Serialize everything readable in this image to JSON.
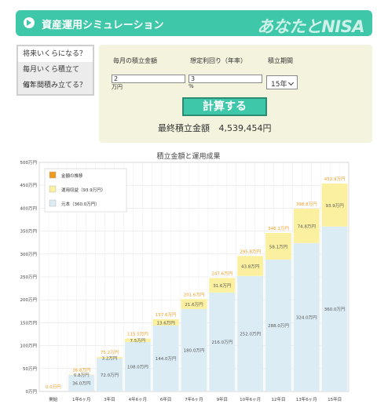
{
  "header": {
    "title": "資産運用シミュレーション",
    "brand": "あなたとNISA"
  },
  "tabs": [
    {
      "label": "将来いくらになる？"
    },
    {
      "label": "毎月いくら積立てる？"
    },
    {
      "label": "何年間積み立てる？"
    }
  ],
  "form": {
    "monthly_label": "毎月の積立金額",
    "rate_label": "想定利回り（年率）",
    "period_label": "積立期間",
    "monthly_value": "2",
    "monthly_unit": "万円",
    "rate_value": "3",
    "rate_unit": "%",
    "period_value": "15年",
    "calc_button": "計算する",
    "result_label": "最終積立金額",
    "result_value": "4,539,454円"
  },
  "chart_data": {
    "type": "bar",
    "title": "積立金額と運用成果",
    "categories": [
      "開始",
      "1年6ヶ月",
      "3年目",
      "4年6ヶ月",
      "6年目",
      "7年6ヶ月",
      "9年目",
      "10年6ヶ月",
      "12年目",
      "13年6ヶ月",
      "15年目"
    ],
    "ylim": [
      0,
      500
    ],
    "yticks": [
      "0万円",
      "50万円",
      "100万円",
      "150万円",
      "200万円",
      "250万円",
      "300万円",
      "350万円",
      "400万円",
      "450万円",
      "500万円"
    ],
    "series": [
      {
        "name": "元本（360.0万円）",
        "color": "#dcecf4",
        "values": [
          0,
          36.0,
          72.0,
          108.0,
          144.0,
          180.0,
          216.0,
          252.0,
          288.0,
          324.0,
          360.0
        ],
        "labels": [
          "",
          "36.0万円",
          "72.0万円",
          "108.0万円",
          "144.0万円",
          "180.0万円",
          "216.0万円",
          "252.0万円",
          "288.0万円",
          "324.0万円",
          "360.0万円"
        ]
      },
      {
        "name": "運用収益（93.9万円）",
        "color": "#fbf0a0",
        "values": [
          0,
          0.8,
          3.2,
          7.5,
          13.6,
          21.6,
          31.6,
          43.8,
          58.1,
          74.8,
          93.9
        ],
        "labels": [
          "",
          "0.8万円",
          "3.2万円",
          "7.5万円",
          "13.6万円",
          "21.6万円",
          "31.6万円",
          "43.8万円",
          "58.1万円",
          "74.8万円",
          "93.9万円"
        ]
      }
    ],
    "totals": [
      "0.0万円",
      "36.8万円",
      "75.2万円",
      "115.5万円",
      "157.6万円",
      "201.6万円",
      "247.6万円",
      "295.8万円",
      "346.1万円",
      "398.8万円",
      "453.9万円"
    ],
    "legend": [
      "金額の推移",
      "運用収益（93.9万円）",
      "元本（360.0万円）"
    ],
    "legend_colors": [
      "#f19b1e",
      "#fbf0a0",
      "#dcecf4"
    ],
    "total_label_color": "#f19b1e",
    "grid": true,
    "legend_position": "top-left"
  }
}
